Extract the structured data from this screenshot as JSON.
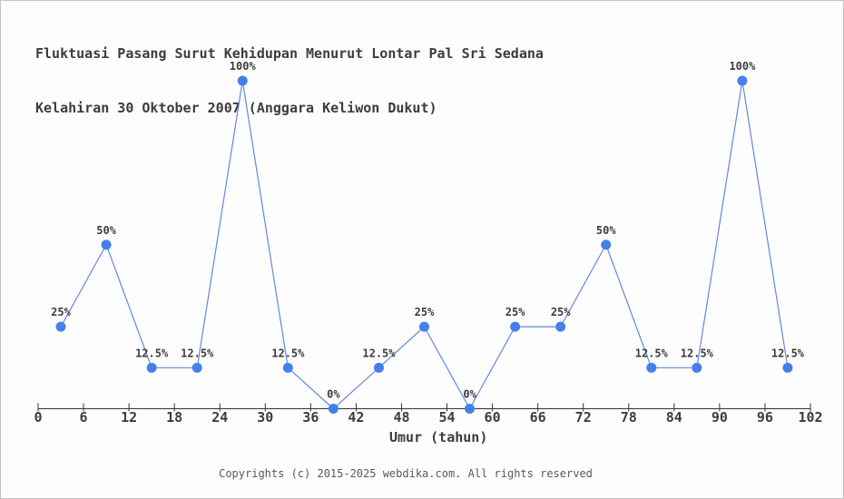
{
  "header": {
    "title_line1": "Fluktuasi Pasang Surut Kehidupan Menurut Lontar Pal Sri Sedana",
    "title_line2": "Kelahiran 30 Oktober 2007 (Anggara Keliwon Dukut)"
  },
  "footer": {
    "copyright": "Copyrights (c) 2015-2025 webdika.com. All rights reserved"
  },
  "chart_data": {
    "type": "line",
    "title": "Fluktuasi Pasang Surut Kehidupan Menurut Lontar Pal Sri Sedana Kelahiran 30 Oktober 2007 (Anggara Keliwon Dukut)",
    "xlabel": "Umur (tahun)",
    "ylabel": "",
    "x": [
      3,
      9,
      15,
      21,
      27,
      33,
      39,
      45,
      51,
      57,
      63,
      69,
      75,
      81,
      87,
      93,
      99
    ],
    "values": [
      25,
      50,
      12.5,
      12.5,
      100,
      12.5,
      0,
      12.5,
      25,
      0,
      25,
      25,
      50,
      12.5,
      12.5,
      100,
      12.5
    ],
    "point_labels": [
      "25%",
      "50%",
      "12.5%",
      "12.5%",
      "100%",
      "12.5%",
      "0%",
      "12.5%",
      "25%",
      "0%",
      "25%",
      "25%",
      "50%",
      "12.5%",
      "12.5%",
      "100%",
      "12.5%"
    ],
    "x_ticks": [
      0,
      6,
      12,
      18,
      24,
      30,
      36,
      42,
      48,
      54,
      60,
      66,
      72,
      78,
      84,
      90,
      96,
      102
    ],
    "xlim": [
      0,
      102
    ],
    "ylim": [
      0,
      100
    ],
    "grid": false,
    "legend": false,
    "colors": {
      "line": "#6488da",
      "marker": "#4480e8",
      "axis": "#333333",
      "tick_text": "#3c3c3c",
      "point_label_text": "#3c3c3c",
      "title_text": "#3c3c3c",
      "footer_text": "#5a5a5a",
      "background": "#fdfdfd",
      "border": "#c2c2c2"
    }
  }
}
